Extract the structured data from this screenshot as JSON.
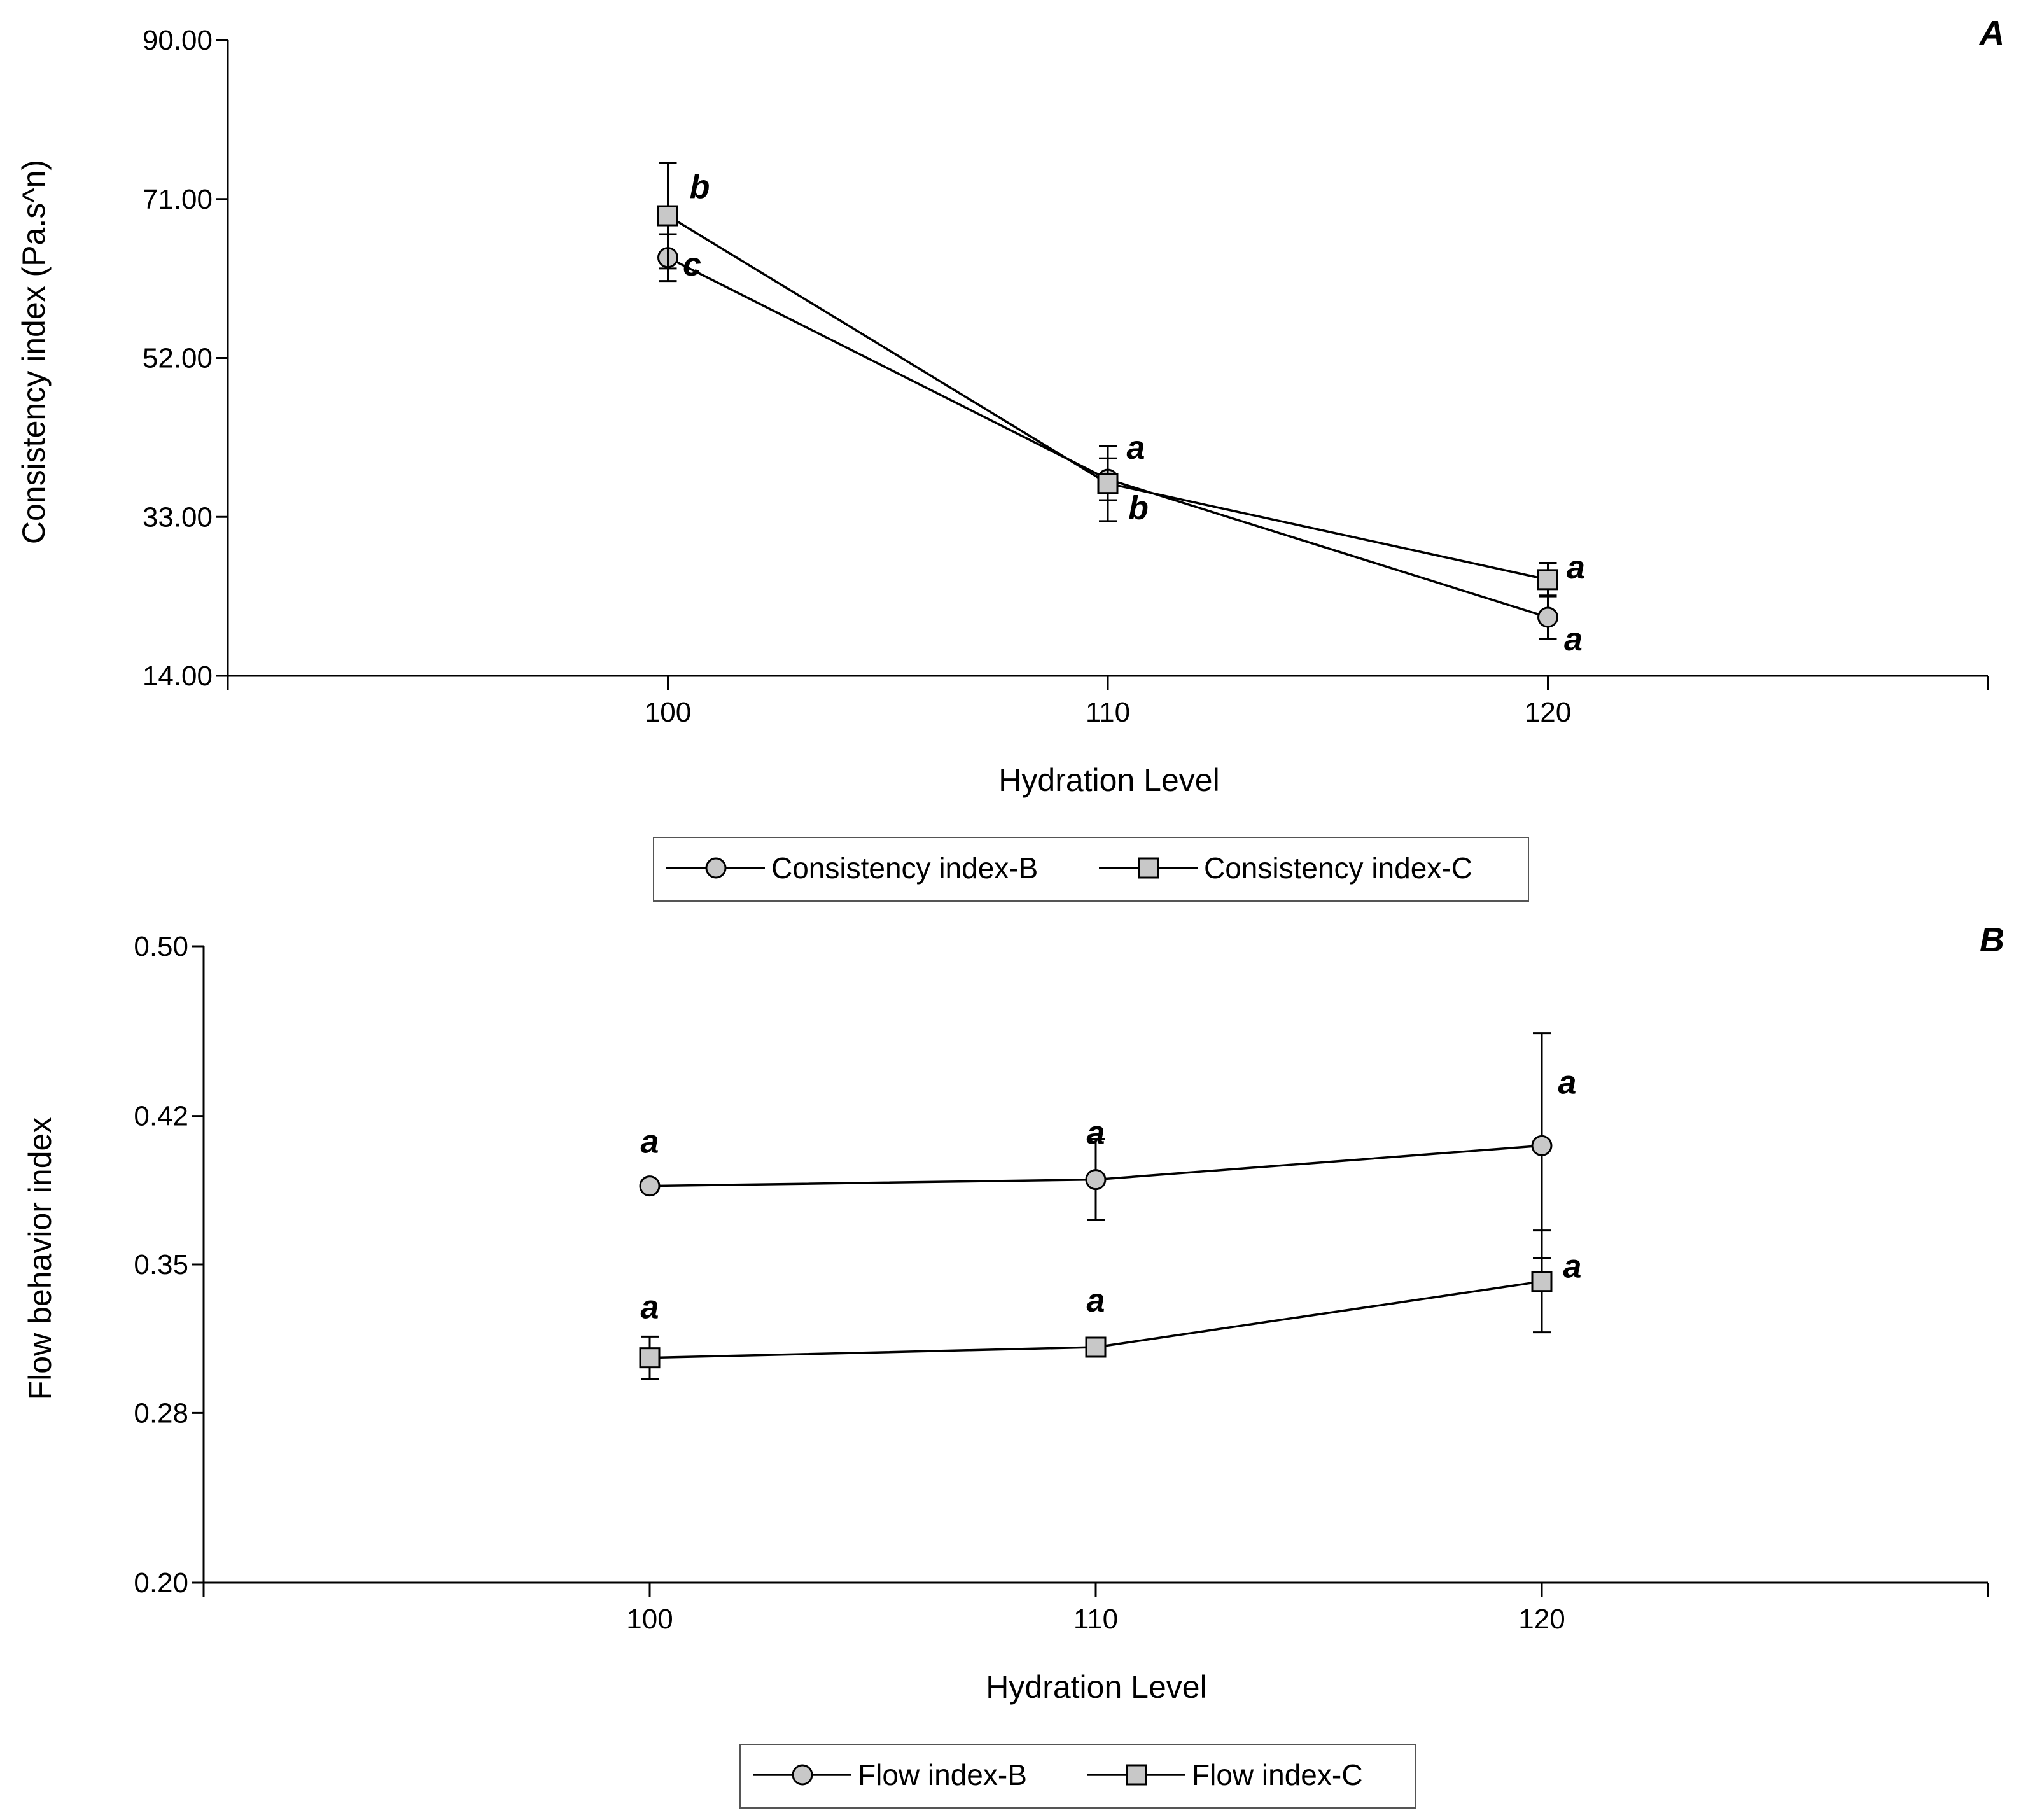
{
  "chart_data": [
    {
      "type": "line",
      "panel_label": "A",
      "title": "",
      "xlabel": "Hydration Level",
      "ylabel": "Consistency index (Pa.s^n)",
      "x": [
        100,
        110,
        120
      ],
      "x_tick_labels": [
        "100",
        "110",
        "120"
      ],
      "xlim": [
        90,
        130
      ],
      "ylim": [
        14,
        90
      ],
      "y_ticks": [
        14,
        33,
        52,
        71,
        90
      ],
      "y_tick_labels": [
        "14.00",
        "33.00",
        "52.00",
        "71.00",
        "90.00"
      ],
      "series": [
        {
          "name": "Consistency index-B",
          "marker": "circle",
          "values": [
            64.0,
            37.5,
            21.0
          ],
          "error": [
            2.8,
            2.5,
            2.6
          ],
          "significance": [
            "c",
            "a",
            "a"
          ]
        },
        {
          "name": "Consistency index-C",
          "marker": "square",
          "values": [
            69.0,
            37.0,
            25.5
          ],
          "error": [
            6.3,
            4.5,
            2.0
          ],
          "significance": [
            "b",
            "b",
            "a"
          ]
        }
      ],
      "legend": [
        "Consistency index-B",
        "Consistency index-C"
      ],
      "legend_position": "bottom"
    },
    {
      "type": "line",
      "panel_label": "B",
      "title": "",
      "xlabel": "Hydration Level",
      "ylabel": "Flow behavior index",
      "x": [
        100,
        110,
        120
      ],
      "x_tick_labels": [
        "100",
        "110",
        "120"
      ],
      "xlim": [
        90,
        130
      ],
      "ylim": [
        0.2,
        0.5
      ],
      "y_ticks": [
        0.2,
        0.28,
        0.35,
        0.42,
        0.5
      ],
      "y_tick_labels": [
        "0.20",
        "0.28",
        "0.35",
        "0.42",
        "0.50"
      ],
      "series": [
        {
          "name": "Flow index-B",
          "marker": "circle",
          "values": [
            0.387,
            0.39,
            0.406
          ],
          "error": [
            0.002,
            0.019,
            0.053
          ],
          "significance": [
            "a",
            "a",
            "a"
          ]
        },
        {
          "name": "Flow index-C",
          "marker": "square",
          "values": [
            0.306,
            0.311,
            0.342
          ],
          "error": [
            0.01,
            0.002,
            0.024
          ],
          "significance": [
            "a",
            "a",
            "a"
          ]
        }
      ],
      "legend": [
        "Flow index-B",
        "Flow index-C"
      ],
      "legend_position": "bottom"
    }
  ]
}
